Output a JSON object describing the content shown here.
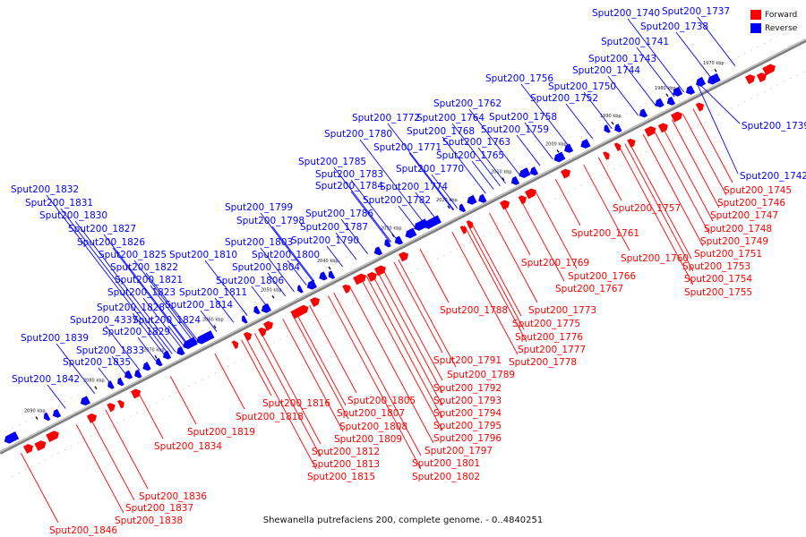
{
  "caption": "Shewanella putrefaciens 200, complete genome. - 0..4840251",
  "legend": [
    {
      "label": "Forward",
      "color": "#ff0000"
    },
    {
      "label": "Reverse",
      "color": "#0000ff"
    }
  ],
  "colors": {
    "forward": "#ff0000",
    "reverse": "#0000ff",
    "axis": "#808080"
  },
  "scale_unit": "kbp",
  "ticks": [
    1970,
    1980,
    1990,
    2000,
    2010,
    2020,
    2030,
    2040,
    2050,
    2060,
    2070,
    2080,
    2090
  ],
  "genes_reverse": [
    "Sput200_1737",
    "Sput200_1738",
    "Sput200_1739",
    "Sput200_1740",
    "Sput200_1741",
    "Sput200_1742",
    "Sput200_1743",
    "Sput200_1744",
    "Sput200_1750",
    "Sput200_1752",
    "Sput200_1756",
    "Sput200_1758",
    "Sput200_1759",
    "Sput200_1762",
    "Sput200_1763",
    "Sput200_1764",
    "Sput200_1765",
    "Sput200_1768",
    "Sput200_1770",
    "Sput200_1771",
    "Sput200_1772",
    "Sput200_1774",
    "Sput200_1780",
    "Sput200_1782",
    "Sput200_1783",
    "Sput200_1784",
    "Sput200_1785",
    "Sput200_1786",
    "Sput200_1787",
    "Sput200_1790",
    "Sput200_1798",
    "Sput200_1799",
    "Sput200_1800",
    "Sput200_1803",
    "Sput200_1804",
    "Sput200_1806",
    "Sput200_1810",
    "Sput200_1811",
    "Sput200_1814",
    "Sput200_1821",
    "Sput200_1822",
    "Sput200_1823",
    "Sput200_1824",
    "Sput200_1825",
    "Sput200_1826",
    "Sput200_1827",
    "Sput200_1828",
    "Sput200_1829",
    "Sput200_1830",
    "Sput200_1831",
    "Sput200_1832",
    "Sput200_1833",
    "Sput200_1835",
    "Sput200_1839",
    "Sput200_1842",
    "Sput200_4337"
  ],
  "genes_forward": [
    "Sput200_1745",
    "Sput200_1746",
    "Sput200_1747",
    "Sput200_1748",
    "Sput200_1749",
    "Sput200_1751",
    "Sput200_1753",
    "Sput200_1754",
    "Sput200_1755",
    "Sput200_1757",
    "Sput200_1760",
    "Sput200_1761",
    "Sput200_1766",
    "Sput200_1767",
    "Sput200_1769",
    "Sput200_1773",
    "Sput200_1775",
    "Sput200_1776",
    "Sput200_1777",
    "Sput200_1778",
    "Sput200_1788",
    "Sput200_1789",
    "Sput200_1791",
    "Sput200_1792",
    "Sput200_1793",
    "Sput200_1794",
    "Sput200_1795",
    "Sput200_1796",
    "Sput200_1797",
    "Sput200_1801",
    "Sput200_1802",
    "Sput200_1805",
    "Sput200_1807",
    "Sput200_1808",
    "Sput200_1809",
    "Sput200_1812",
    "Sput200_1813",
    "Sput200_1815",
    "Sput200_1816",
    "Sput200_1818",
    "Sput200_1819",
    "Sput200_1834",
    "Sput200_1836",
    "Sput200_1837",
    "Sput200_1838",
    "Sput200_1846"
  ]
}
